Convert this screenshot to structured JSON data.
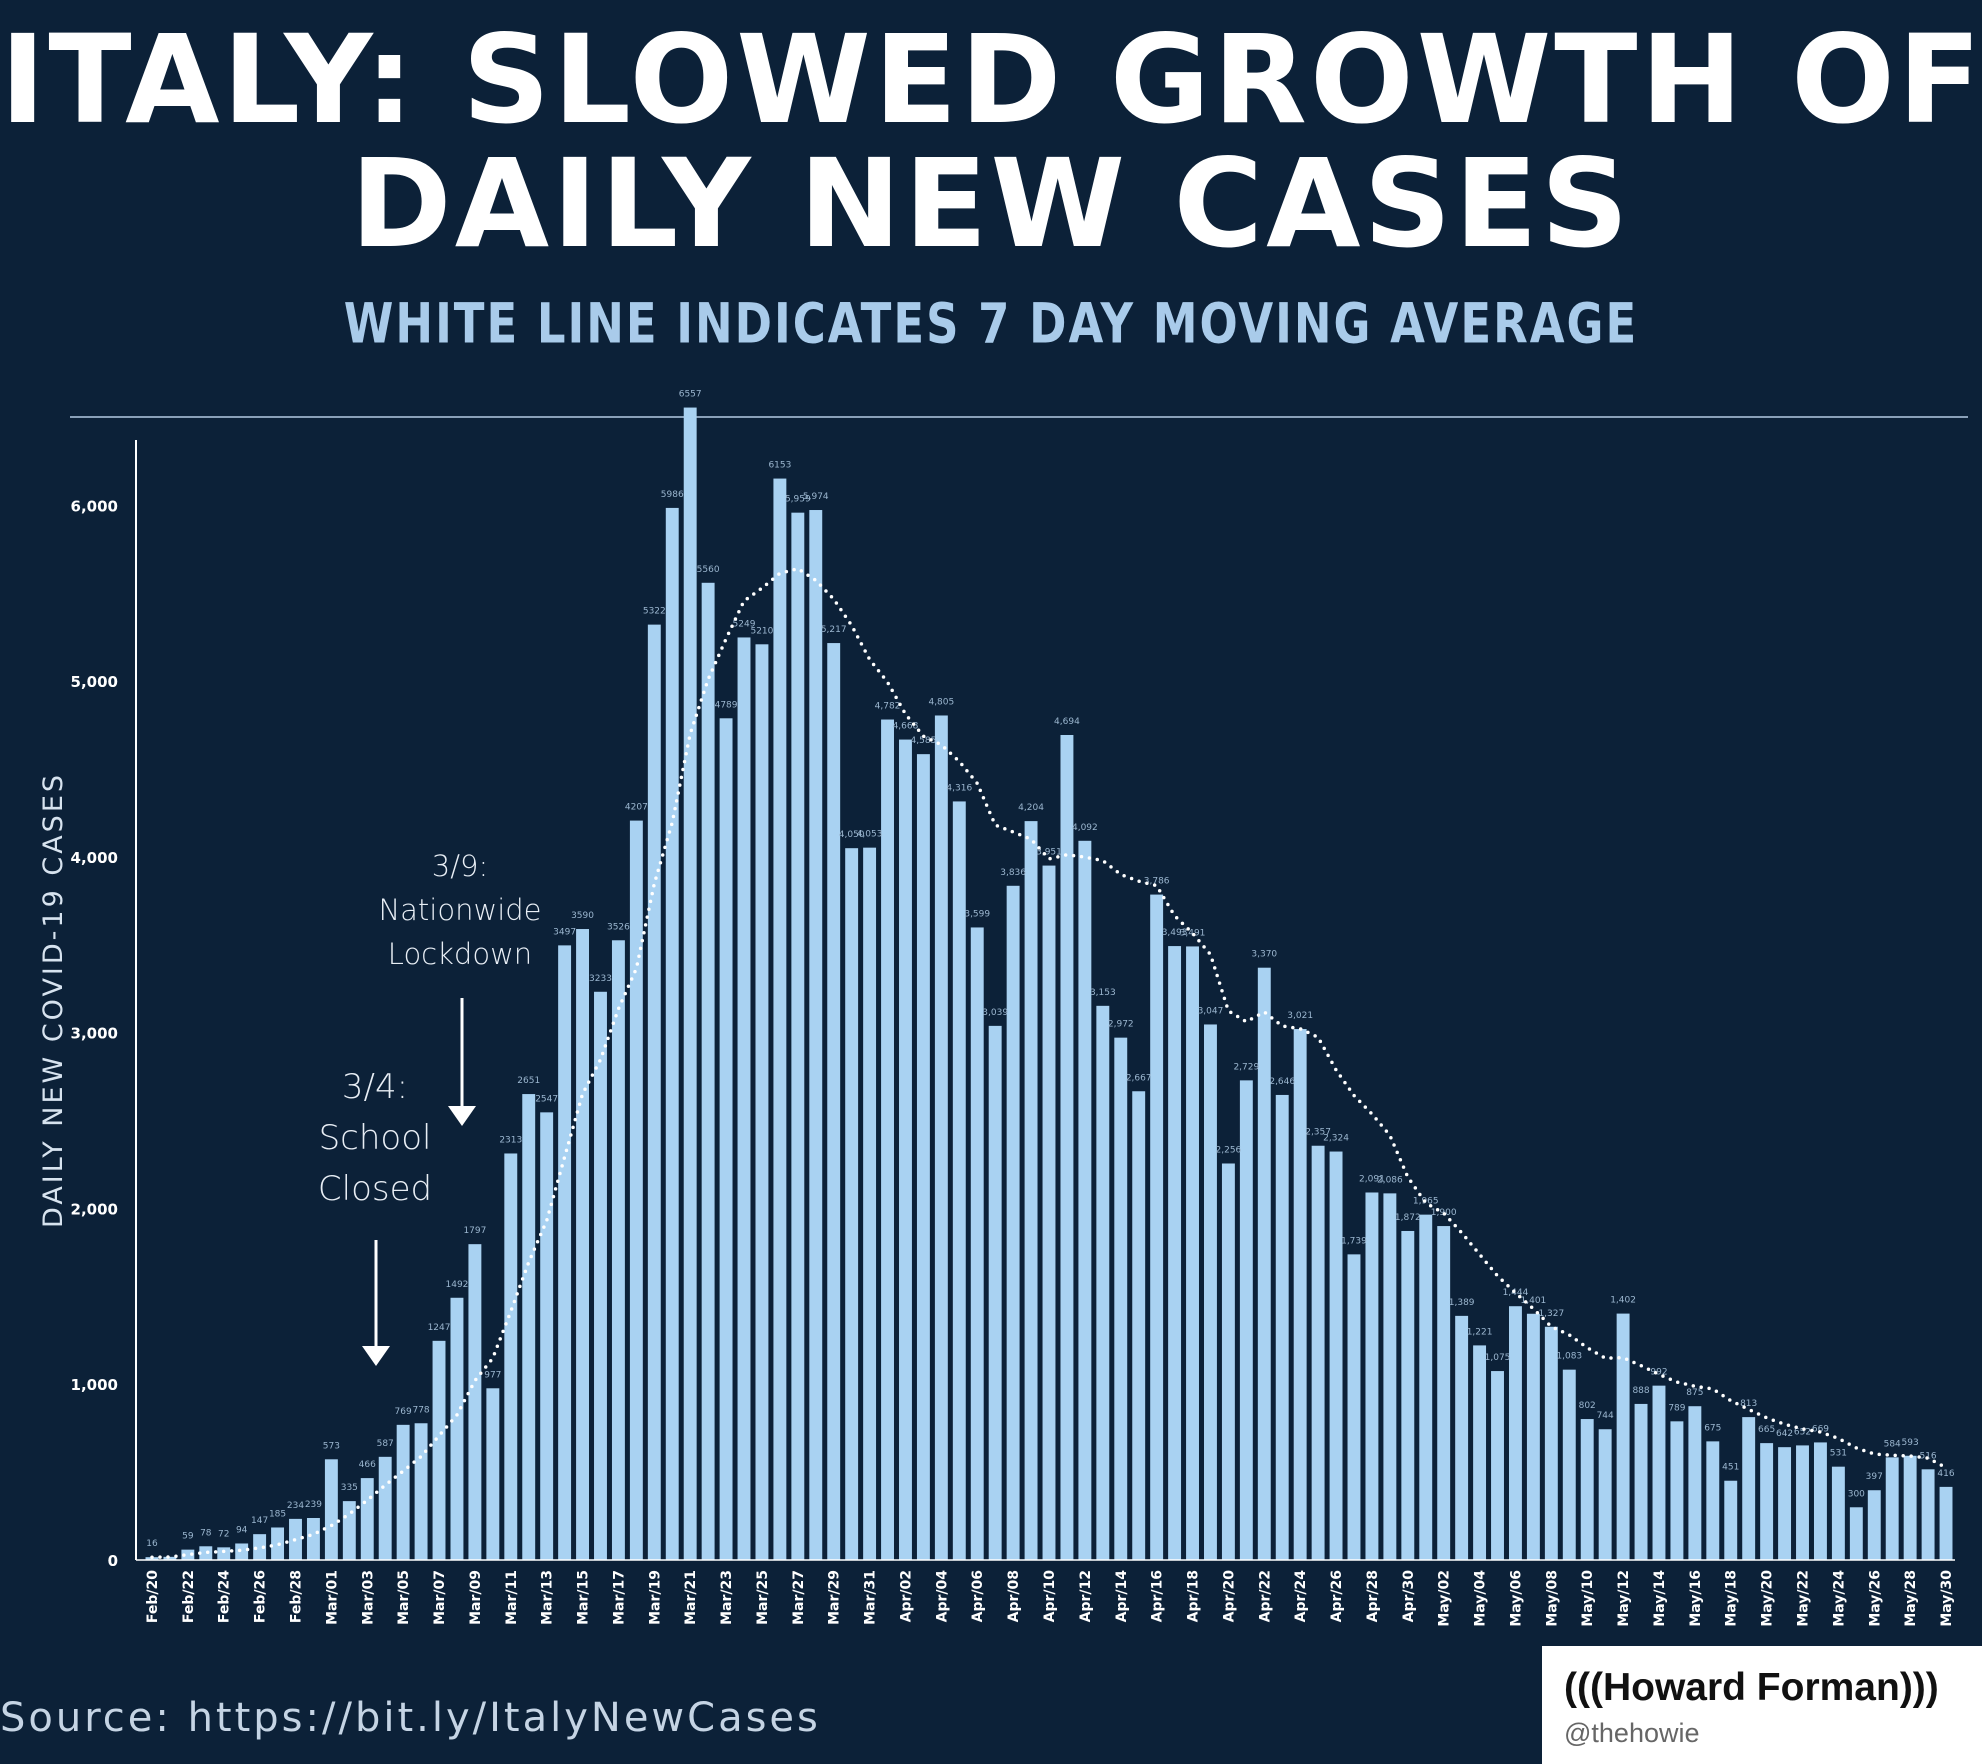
{
  "title": {
    "line1": "ITALY: SLOWED GROWTH OF",
    "line2": "DAILY NEW CASES"
  },
  "subtitle": "WHITE LINE INDICATES 7 DAY MOVING AVERAGE",
  "source": "Source: https://bit.ly/ItalyNewCases",
  "credit": {
    "name": "(((Howard Forman)))",
    "handle": "@thehowie"
  },
  "annotations": {
    "lockdown": {
      "date": "3/9:",
      "line1": "Nationwide",
      "line2": "Lockdown",
      "x_category": "Mar/09"
    },
    "school": {
      "date": "3/4:",
      "line1": "School",
      "line2": "Closed",
      "x_category": "Mar/04"
    }
  },
  "colors": {
    "background": "#0c2138",
    "bar": "#a9d2f2",
    "average_line": "#ffffff",
    "text": "#ffffff",
    "subtitle": "#a9cbea"
  },
  "chart_data": {
    "type": "bar",
    "ylabel": "DAILY NEW COVID-19 CASES",
    "xlabel": "",
    "ylim": [
      0,
      6600
    ],
    "yticks": [
      0,
      1000,
      2000,
      3000,
      4000,
      5000,
      6000
    ],
    "ytick_labels": [
      "0",
      "1,000",
      "2,000",
      "3,000",
      "4,000",
      "5,000",
      "6,000"
    ],
    "grid": false,
    "categories": [
      "Feb/20",
      "Feb/21",
      "Feb/22",
      "Feb/23",
      "Feb/24",
      "Feb/25",
      "Feb/26",
      "Feb/27",
      "Feb/28",
      "Feb/29",
      "Mar/01",
      "Mar/02",
      "Mar/03",
      "Mar/04",
      "Mar/05",
      "Mar/06",
      "Mar/07",
      "Mar/08",
      "Mar/09",
      "Mar/10",
      "Mar/11",
      "Mar/12",
      "Mar/13",
      "Mar/14",
      "Mar/15",
      "Mar/16",
      "Mar/17",
      "Mar/18",
      "Mar/19",
      "Mar/20",
      "Mar/21",
      "Mar/22",
      "Mar/23",
      "Mar/24",
      "Mar/25",
      "Mar/26",
      "Mar/27",
      "Mar/28",
      "Mar/29",
      "Mar/30",
      "Mar/31",
      "Apr/01",
      "Apr/02",
      "Apr/03",
      "Apr/04",
      "Apr/05",
      "Apr/06",
      "Apr/07",
      "Apr/08",
      "Apr/09",
      "Apr/10",
      "Apr/11",
      "Apr/12",
      "Apr/13",
      "Apr/14",
      "Apr/15",
      "Apr/16",
      "Apr/17",
      "Apr/18",
      "Apr/19",
      "Apr/20",
      "Apr/21",
      "Apr/22",
      "Apr/23",
      "Apr/24",
      "Apr/25",
      "Apr/26",
      "Apr/27",
      "Apr/28",
      "Apr/29",
      "Apr/30",
      "May/01",
      "May/02",
      "May/03",
      "May/04",
      "May/05",
      "May/06",
      "May/07",
      "May/08",
      "May/09",
      "May/10",
      "May/11",
      "May/12",
      "May/13",
      "May/14",
      "May/15",
      "May/16",
      "May/17",
      "May/18",
      "May/19",
      "May/20",
      "May/21",
      "May/22",
      "May/23",
      "May/24",
      "May/25",
      "May/26",
      "May/27",
      "May/28",
      "May/29",
      "May/30"
    ],
    "xtick_labels": [
      "Feb/20",
      "Feb/22",
      "Feb/24",
      "Feb/26",
      "Feb/28",
      "Mar/01",
      "Mar/03",
      "Mar/05",
      "Mar/07",
      "Mar/09",
      "Mar/11",
      "Mar/13",
      "Mar/15",
      "Mar/17",
      "Mar/19",
      "Mar/21",
      "Mar/23",
      "Mar/25",
      "Mar/27",
      "Mar/29",
      "Mar/31",
      "Apr/02",
      "Apr/04",
      "Apr/06",
      "Apr/08",
      "Apr/10",
      "Apr/12",
      "Apr/14",
      "Apr/16",
      "Apr/18",
      "Apr/20",
      "Apr/22",
      "Apr/24",
      "Apr/26",
      "Apr/28",
      "Apr/30",
      "May/02",
      "May/04",
      "May/06",
      "May/08",
      "May/10",
      "May/12",
      "May/14",
      "May/16",
      "May/18",
      "May/20",
      "May/22",
      "May/24",
      "May/26",
      "May/28",
      "May/30"
    ],
    "series": [
      {
        "type": "bar",
        "values": [
          16,
          18,
          59,
          78,
          72,
          94,
          147,
          185,
          234,
          239,
          573,
          335,
          466,
          587,
          769,
          778,
          1247,
          1492,
          1797,
          977,
          2313,
          2651,
          2547,
          3497,
          3590,
          3233,
          3526,
          4207,
          5322,
          5986,
          6557,
          5560,
          4789,
          5249,
          5210,
          6153,
          5959,
          5974,
          5217,
          4050,
          4053,
          4782,
          4668,
          4585,
          4805,
          4316,
          3599,
          3039,
          3836,
          4204,
          3951,
          4694,
          4092,
          3153,
          2972,
          2667,
          3786,
          3493,
          3491,
          3047,
          2256,
          2729,
          3370,
          2646,
          3021,
          2357,
          2324,
          1739,
          2091,
          2086,
          1872,
          1965,
          1900,
          1389,
          1221,
          1075,
          1444,
          1401,
          1327,
          1083,
          802,
          744,
          1402,
          888,
          992,
          789,
          875,
          675,
          451,
          813,
          665,
          642,
          652,
          669,
          531,
          300,
          397,
          584,
          593,
          516,
          416
        ],
        "labels": [
          "16",
          "",
          "59",
          "78",
          "72",
          "94",
          "147",
          "185",
          "234",
          "239",
          "573",
          "335",
          "466",
          "587",
          "769",
          "778",
          "1247",
          "1492",
          "1797",
          "977",
          "2313",
          "2651",
          "2547",
          "3497",
          "3590",
          "3233",
          "3526",
          "4207",
          "5322",
          "5986",
          "6557",
          "5560",
          "4789",
          "5249",
          "5210",
          "6153",
          "5,959",
          "5,974",
          "5,217",
          "4,050",
          "4,053",
          "4,782",
          "4,668",
          "4,585",
          "4,805",
          "4,316",
          "3,599",
          "3,039",
          "3,836",
          "4,204",
          "3,951",
          "4,694",
          "4,092",
          "3,153",
          "2,972",
          "2,667",
          "3,786",
          "3,493",
          "3,491",
          "3,047",
          "2,256",
          "2,729",
          "3,370",
          "2,646",
          "3,021",
          "2,357",
          "2,324",
          "1,739",
          "2,091",
          "2,086",
          "1,872",
          "1,965",
          "1,900",
          "1,389",
          "1,221",
          "1,075",
          "1,444",
          "1,401",
          "1,327",
          "1,083",
          "802",
          "744",
          "1,402",
          "888",
          "992",
          "789",
          "875",
          "675",
          "451",
          "813",
          "665",
          "642",
          "652",
          "669",
          "531",
          "300",
          "397",
          "584",
          "593",
          "516",
          "416"
        ]
      },
      {
        "type": "line",
        "style": "dotted",
        "values": [
          16,
          17,
          31,
          43,
          49,
          56,
          69,
          87,
          116,
          146,
          196,
          262,
          340,
          426,
          506,
          589,
          707,
          826,
          1020,
          1149,
          1415,
          1694,
          1931,
          2293,
          2651,
          2847,
          3135,
          3366,
          3848,
          4195,
          4701,
          5010,
          5242,
          5457,
          5530,
          5614,
          5641,
          5574,
          5467,
          5317,
          5124,
          4995,
          4813,
          4687,
          4638,
          4544,
          4419,
          4182,
          4142,
          4101,
          3989,
          4013,
          3999,
          3980,
          3900,
          3862,
          3837,
          3666,
          3567,
          3445,
          3124,
          3063,
          3118,
          3038,
          3023,
          2974,
          2789,
          2643,
          2538,
          2416,
          2179,
          2031,
          1973,
          1863,
          1739,
          1617,
          1520,
          1429,
          1328,
          1281,
          1208,
          1149,
          1151,
          1106,
          1056,
          1013,
          989,
          973,
          907,
          857,
          809,
          772,
          746,
          728,
          692,
          638,
          603,
          596,
          592,
          580,
          525
        ]
      }
    ]
  }
}
